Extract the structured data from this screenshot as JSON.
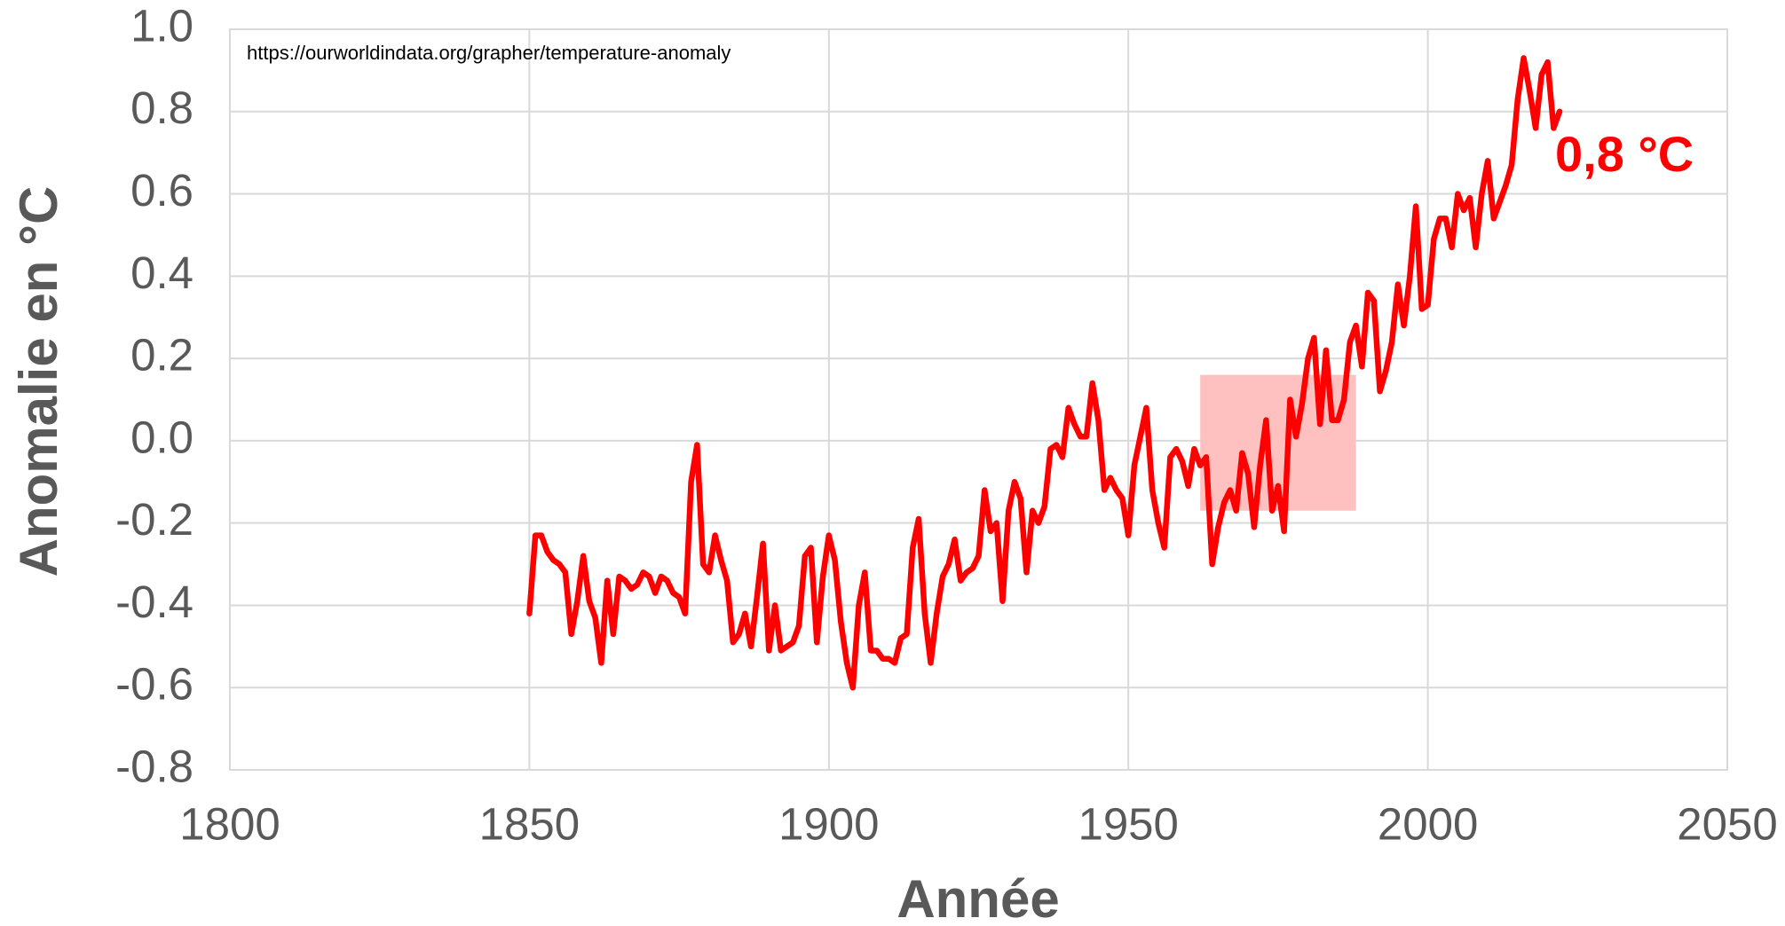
{
  "chart_data": {
    "type": "line",
    "source": "https://ourworldindata.org/grapher/temperature-anomaly",
    "xlabel": "Année",
    "ylabel": "Anomalie en °C",
    "annotation": "0,8 °C",
    "annotation_color": "#ff0000",
    "grid": true,
    "xlim": [
      1800,
      2050
    ],
    "xticks": [
      1800,
      1850,
      1900,
      1950,
      2000,
      2050
    ],
    "ylim": [
      -0.8,
      1.0
    ],
    "yticks": [
      -0.8,
      -0.6,
      -0.4,
      -0.2,
      {
        "value": 0.0,
        "label": "0.0"
      },
      0.2,
      0.4,
      0.6,
      0.8,
      {
        "value": 1.0,
        "label": "1.0"
      }
    ],
    "highlight": {
      "x": [
        1962,
        1988
      ],
      "y": [
        -0.17,
        0.16
      ],
      "color": "#ffc0c0"
    },
    "x": [
      1850,
      1851,
      1852,
      1853,
      1854,
      1855,
      1856,
      1857,
      1858,
      1859,
      1860,
      1861,
      1862,
      1863,
      1864,
      1865,
      1866,
      1867,
      1868,
      1869,
      1870,
      1871,
      1872,
      1873,
      1874,
      1875,
      1876,
      1877,
      1878,
      1879,
      1880,
      1881,
      1882,
      1883,
      1884,
      1885,
      1886,
      1887,
      1888,
      1889,
      1890,
      1891,
      1892,
      1893,
      1894,
      1895,
      1896,
      1897,
      1898,
      1899,
      1900,
      1901,
      1902,
      1903,
      1904,
      1905,
      1906,
      1907,
      1908,
      1909,
      1910,
      1911,
      1912,
      1913,
      1914,
      1915,
      1916,
      1917,
      1918,
      1919,
      1920,
      1921,
      1922,
      1923,
      1924,
      1925,
      1926,
      1927,
      1928,
      1929,
      1930,
      1931,
      1932,
      1933,
      1934,
      1935,
      1936,
      1937,
      1938,
      1939,
      1940,
      1941,
      1942,
      1943,
      1944,
      1945,
      1946,
      1947,
      1948,
      1949,
      1950,
      1951,
      1952,
      1953,
      1954,
      1955,
      1956,
      1957,
      1958,
      1959,
      1960,
      1961,
      1962,
      1963,
      1964,
      1965,
      1966,
      1967,
      1968,
      1969,
      1970,
      1971,
      1972,
      1973,
      1974,
      1975,
      1976,
      1977,
      1978,
      1979,
      1980,
      1981,
      1982,
      1983,
      1984,
      1985,
      1986,
      1987,
      1988,
      1989,
      1990,
      1991,
      1992,
      1993,
      1994,
      1995,
      1996,
      1997,
      1998,
      1999,
      2000,
      2001,
      2002,
      2003,
      2004,
      2005,
      2006,
      2007,
      2008,
      2009,
      2010,
      2011,
      2012,
      2013,
      2014,
      2015,
      2016,
      2017,
      2018,
      2019,
      2020,
      2021,
      2022
    ],
    "series": [
      {
        "color": "#ff0000",
        "values": [
          -0.42,
          -0.23,
          -0.23,
          -0.27,
          -0.29,
          -0.3,
          -0.32,
          -0.47,
          -0.39,
          -0.28,
          -0.39,
          -0.43,
          -0.54,
          -0.34,
          -0.47,
          -0.33,
          -0.34,
          -0.36,
          -0.35,
          -0.32,
          -0.33,
          -0.37,
          -0.33,
          -0.34,
          -0.37,
          -0.38,
          -0.42,
          -0.1,
          -0.01,
          -0.3,
          -0.32,
          -0.23,
          -0.29,
          -0.34,
          -0.49,
          -0.47,
          -0.42,
          -0.5,
          -0.38,
          -0.25,
          -0.51,
          -0.4,
          -0.51,
          -0.5,
          -0.49,
          -0.45,
          -0.28,
          -0.26,
          -0.49,
          -0.33,
          -0.23,
          -0.29,
          -0.44,
          -0.54,
          -0.6,
          -0.4,
          -0.32,
          -0.51,
          -0.51,
          -0.53,
          -0.53,
          -0.54,
          -0.48,
          -0.47,
          -0.26,
          -0.19,
          -0.42,
          -0.54,
          -0.42,
          -0.33,
          -0.3,
          -0.24,
          -0.34,
          -0.32,
          -0.31,
          -0.28,
          -0.12,
          -0.22,
          -0.2,
          -0.39,
          -0.17,
          -0.1,
          -0.14,
          -0.32,
          -0.17,
          -0.2,
          -0.16,
          -0.02,
          -0.01,
          -0.04,
          0.08,
          0.04,
          0.01,
          0.01,
          0.14,
          0.05,
          -0.12,
          -0.09,
          -0.12,
          -0.14,
          -0.23,
          -0.06,
          0.01,
          0.08,
          -0.12,
          -0.2,
          -0.26,
          -0.04,
          -0.02,
          -0.05,
          -0.11,
          -0.02,
          -0.06,
          -0.04,
          -0.3,
          -0.21,
          -0.15,
          -0.12,
          -0.17,
          -0.03,
          -0.08,
          -0.21,
          -0.06,
          0.05,
          -0.17,
          -0.11,
          -0.22,
          0.1,
          0.01,
          0.09,
          0.2,
          0.25,
          0.04,
          0.22,
          0.05,
          0.05,
          0.1,
          0.24,
          0.28,
          0.18,
          0.36,
          0.34,
          0.12,
          0.17,
          0.24,
          0.38,
          0.28,
          0.4,
          0.57,
          0.32,
          0.33,
          0.49,
          0.54,
          0.54,
          0.47,
          0.6,
          0.56,
          0.59,
          0.47,
          0.6,
          0.68,
          0.54,
          0.58,
          0.62,
          0.67,
          0.83,
          0.93,
          0.85,
          0.76,
          0.89,
          0.92,
          0.76,
          0.8
        ]
      }
    ]
  }
}
